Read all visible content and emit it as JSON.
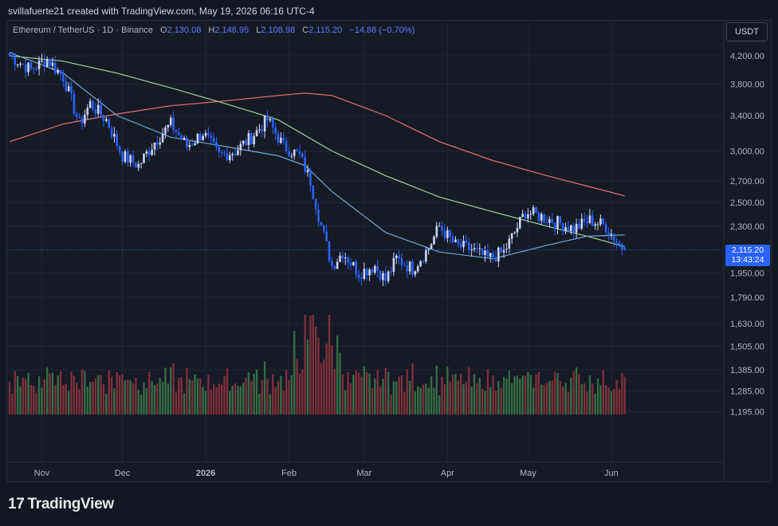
{
  "header": {
    "caption": "svillafuerte21 created with TradingView.com, May 19, 2026 06:16 UTC-4"
  },
  "legend": {
    "symbol": "Ethereum / TetherUS · 1D · Binance",
    "o_key": "O",
    "o_val": "2,130.08",
    "h_key": "H",
    "h_val": "2,146.95",
    "l_key": "L",
    "l_val": "2,108.98",
    "c_key": "C",
    "c_val": "2,115.20",
    "change": "−14.88 (−0.70%)"
  },
  "unit_button": "USDT",
  "last_price": {
    "price": "2,115.20",
    "countdown": "13:43:24"
  },
  "branding": {
    "logo_mark": "17",
    "logo_text": "TradingView"
  },
  "colors": {
    "up": "#c9d4ff",
    "down": "#2962ff",
    "vol_up": "#3b7a4a",
    "vol_down": "#8e3440",
    "ma_short": "#6fa8dc",
    "ma_mid": "#9fd49b",
    "ma_long": "#e57373"
  },
  "chart_data": {
    "type": "candlestick",
    "y_scale": "log",
    "y_ticks": [
      "4,200.00",
      "3,800.00",
      "3,400.00",
      "3,000.00",
      "2,700.00",
      "2,500.00",
      "2,300.00",
      "1,950.00",
      "1,790.00",
      "1,630.00",
      "1,505.00",
      "1,385.00",
      "1,285.00",
      "1,195.00"
    ],
    "y_tick_values": [
      4200,
      3800,
      3400,
      3000,
      2700,
      2500,
      2300,
      1950,
      1790,
      1630,
      1505,
      1385,
      1285,
      1195
    ],
    "x_ticks": [
      "Nov",
      "Dec",
      "2026",
      "Feb",
      "Mar",
      "Apr",
      "May",
      "Jun"
    ],
    "x_tick_dates": [
      "2025-11-01",
      "2025-12-01",
      "2026-01-01",
      "2026-02-01",
      "2026-03-01",
      "2026-04-01",
      "2026-05-01",
      "2026-06-01"
    ],
    "start_date": "2025-10-20",
    "anchors": [
      [
        0,
        4200
      ],
      [
        8,
        4000
      ],
      [
        14,
        4150
      ],
      [
        20,
        3900
      ],
      [
        26,
        3300
      ],
      [
        30,
        3550
      ],
      [
        36,
        3350
      ],
      [
        42,
        2950
      ],
      [
        48,
        2850
      ],
      [
        54,
        3100
      ],
      [
        60,
        3300
      ],
      [
        66,
        3050
      ],
      [
        72,
        3200
      ],
      [
        78,
        2950
      ],
      [
        84,
        3000
      ],
      [
        90,
        3150
      ],
      [
        96,
        3350
      ],
      [
        102,
        3050
      ],
      [
        108,
        2950
      ],
      [
        112,
        2700
      ],
      [
        116,
        2300
      ],
      [
        120,
        2000
      ],
      [
        124,
        2100
      ],
      [
        130,
        1950
      ],
      [
        136,
        2000
      ],
      [
        140,
        1900
      ],
      [
        144,
        2050
      ],
      [
        150,
        1980
      ],
      [
        156,
        2130
      ],
      [
        160,
        2300
      ],
      [
        166,
        2150
      ],
      [
        172,
        2120
      ],
      [
        178,
        2050
      ],
      [
        184,
        2100
      ],
      [
        188,
        2250
      ],
      [
        192,
        2420
      ],
      [
        198,
        2380
      ],
      [
        204,
        2330
      ],
      [
        210,
        2280
      ],
      [
        216,
        2350
      ],
      [
        222,
        2300
      ],
      [
        226,
        2180
      ],
      [
        229,
        2115
      ]
    ],
    "last_candle": {
      "open": 2130.08,
      "high": 2146.95,
      "low": 2108.98,
      "close": 2115.2
    },
    "moving_averages": {
      "short": [
        [
          0,
          4250
        ],
        [
          20,
          3950
        ],
        [
          40,
          3400
        ],
        [
          60,
          3150
        ],
        [
          80,
          3050
        ],
        [
          100,
          2950
        ],
        [
          110,
          2850
        ],
        [
          120,
          2600
        ],
        [
          140,
          2250
        ],
        [
          160,
          2100
        ],
        [
          180,
          2050
        ],
        [
          200,
          2150
        ],
        [
          215,
          2220
        ],
        [
          229,
          2230
        ]
      ],
      "mid": [
        [
          0,
          4200
        ],
        [
          20,
          4120
        ],
        [
          40,
          3950
        ],
        [
          60,
          3750
        ],
        [
          80,
          3550
        ],
        [
          100,
          3350
        ],
        [
          120,
          3000
        ],
        [
          140,
          2750
        ],
        [
          160,
          2550
        ],
        [
          180,
          2420
        ],
        [
          200,
          2300
        ],
        [
          215,
          2220
        ],
        [
          229,
          2140
        ]
      ],
      "long": [
        [
          0,
          3100
        ],
        [
          20,
          3300
        ],
        [
          40,
          3420
        ],
        [
          60,
          3520
        ],
        [
          80,
          3580
        ],
        [
          100,
          3650
        ],
        [
          110,
          3680
        ],
        [
          120,
          3650
        ],
        [
          140,
          3400
        ],
        [
          160,
          3100
        ],
        [
          180,
          2900
        ],
        [
          200,
          2750
        ],
        [
          215,
          2650
        ],
        [
          229,
          2560
        ]
      ]
    }
  }
}
